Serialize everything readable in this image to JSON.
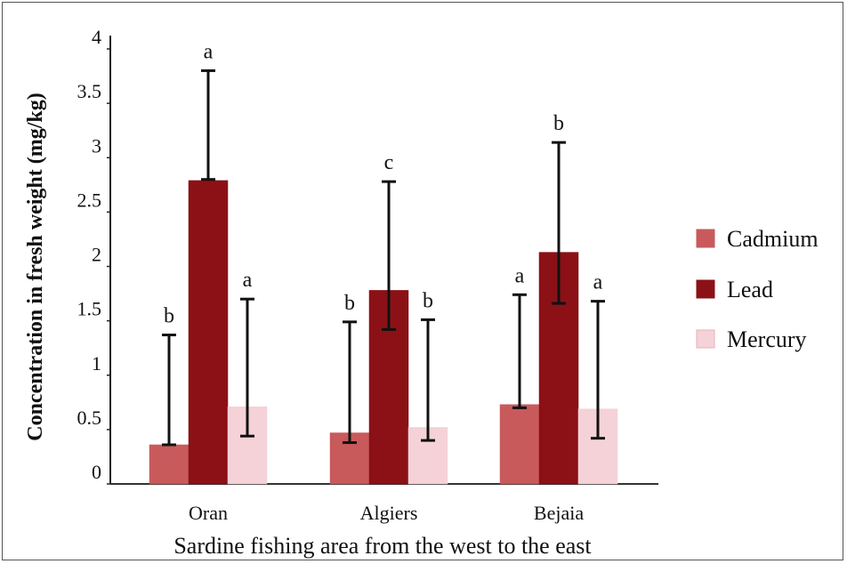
{
  "chart_data": {
    "type": "bar",
    "title": "",
    "xlabel": "Sardine fishing area from the west to the east",
    "ylabel": "Concentration in fresh weight (mg/kg)",
    "ylim": [
      0,
      4
    ],
    "yticks": [
      "0",
      "0.5",
      "1",
      "1.5",
      "2",
      "2.5",
      "3",
      "3.5",
      "4"
    ],
    "categories": [
      "Oran",
      "Algiers",
      "Bejaia"
    ],
    "series": [
      {
        "name": "Cadmium",
        "color": "#c85a5c",
        "values": [
          0.36,
          0.47,
          0.73
        ],
        "error_low": [
          0.36,
          0.38,
          0.7
        ],
        "error_high": [
          1.37,
          1.49,
          1.74
        ],
        "letters": [
          "b",
          "b",
          "a"
        ]
      },
      {
        "name": "Lead",
        "color": "#8b1116",
        "values": [
          2.79,
          1.78,
          2.13
        ],
        "error_low": [
          2.8,
          1.42,
          1.66
        ],
        "error_high": [
          3.8,
          2.78,
          3.14
        ],
        "letters": [
          "a",
          "c",
          "b"
        ]
      },
      {
        "name": "Mercury",
        "color": "#f4d2d8",
        "values": [
          0.71,
          0.52,
          0.69
        ],
        "error_low": [
          0.44,
          0.4,
          0.42
        ],
        "error_high": [
          1.7,
          1.51,
          1.68
        ],
        "letters": [
          "a",
          "b",
          "a"
        ]
      }
    ],
    "legend_position": "right",
    "grid": false
  }
}
